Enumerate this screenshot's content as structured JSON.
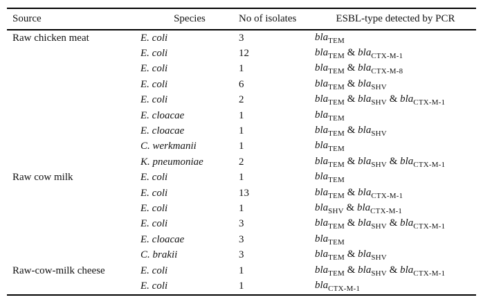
{
  "page": {
    "background": "#ffffff",
    "text_color": "#111111",
    "rule_color": "#000000"
  },
  "table": {
    "headers": {
      "source": "Source",
      "species": "Species",
      "isolates": "No of isolates",
      "esbl": "ESBL-type detected by PCR"
    },
    "gene_prefix": "bla",
    "gene_separator": " & ",
    "rows": [
      {
        "source": "Raw chicken meat",
        "species": "E. coli",
        "isolates": "3",
        "esbl": [
          "TEM"
        ]
      },
      {
        "source": "",
        "species": "E. coli",
        "isolates": "12",
        "esbl": [
          "TEM",
          "CTX-M-1"
        ]
      },
      {
        "source": "",
        "species": "E. coli",
        "isolates": "1",
        "esbl": [
          "TEM",
          "CTX-M-8"
        ]
      },
      {
        "source": "",
        "species": "E. coli",
        "isolates": "6",
        "esbl": [
          "TEM",
          "SHV"
        ]
      },
      {
        "source": "",
        "species": "E. coli",
        "isolates": "2",
        "esbl": [
          "TEM",
          "SHV",
          "CTX-M-1"
        ]
      },
      {
        "source": "",
        "species": "E. cloacae",
        "isolates": "1",
        "esbl": [
          "TEM"
        ]
      },
      {
        "source": "",
        "species": "E. cloacae",
        "isolates": "1",
        "esbl": [
          "TEM",
          "SHV"
        ]
      },
      {
        "source": "",
        "species": "C. werkmanii",
        "isolates": "1",
        "esbl": [
          "TEM"
        ]
      },
      {
        "source": "",
        "species": "K. pneumoniae",
        "isolates": "2",
        "esbl": [
          "TEM",
          "SHV",
          "CTX-M-1"
        ]
      },
      {
        "source": "Raw cow milk",
        "species": "E. coli",
        "isolates": "1",
        "esbl": [
          "TEM"
        ]
      },
      {
        "source": "",
        "species": "E. coli",
        "isolates": "13",
        "esbl": [
          "TEM",
          "CTX-M-1"
        ]
      },
      {
        "source": "",
        "species": "E. coli",
        "isolates": "1",
        "esbl": [
          "SHV",
          "CTX-M-1"
        ]
      },
      {
        "source": "",
        "species": "E. coli",
        "isolates": "3",
        "esbl": [
          "TEM",
          "SHV",
          "CTX-M-1"
        ]
      },
      {
        "source": "",
        "species": "E. cloacae",
        "isolates": "3",
        "esbl": [
          "TEM"
        ]
      },
      {
        "source": "",
        "species": "C. brakii",
        "isolates": "3",
        "esbl": [
          "TEM",
          "SHV"
        ]
      },
      {
        "source": "Raw-cow-milk cheese",
        "species": "E. coli",
        "isolates": "1",
        "esbl": [
          "TEM",
          "SHV",
          "CTX-M-1"
        ]
      },
      {
        "source": "",
        "species": "E. coli",
        "isolates": "1",
        "esbl": [
          "CTX-M-1"
        ]
      }
    ]
  }
}
